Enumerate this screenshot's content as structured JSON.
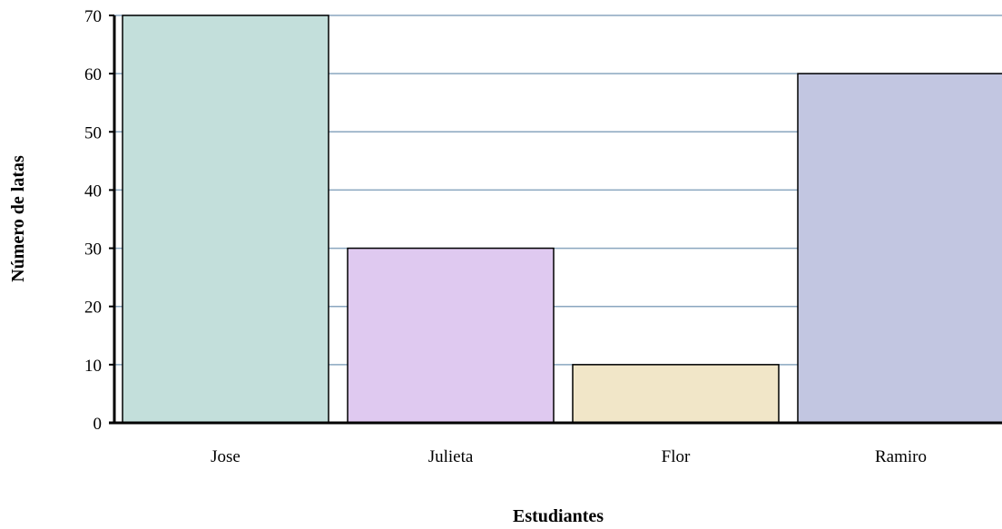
{
  "chart_data": {
    "type": "bar",
    "title": "",
    "xlabel": "Estudiantes",
    "ylabel": "Número de latas",
    "categories": [
      "Jose",
      "Julieta",
      "Flor",
      "Ramiro"
    ],
    "values": [
      70,
      30,
      10,
      60
    ],
    "bar_colors": [
      "#c3dfdb",
      "#dfc9f0",
      "#f1e6c8",
      "#c2c6e1"
    ],
    "ylim": [
      0,
      70
    ],
    "yticks": [
      0,
      10,
      20,
      30,
      40,
      50,
      60,
      70
    ],
    "grid": true,
    "grid_color": "#8aa6bf",
    "bar_edge_color": "#000000",
    "legend": "none"
  }
}
